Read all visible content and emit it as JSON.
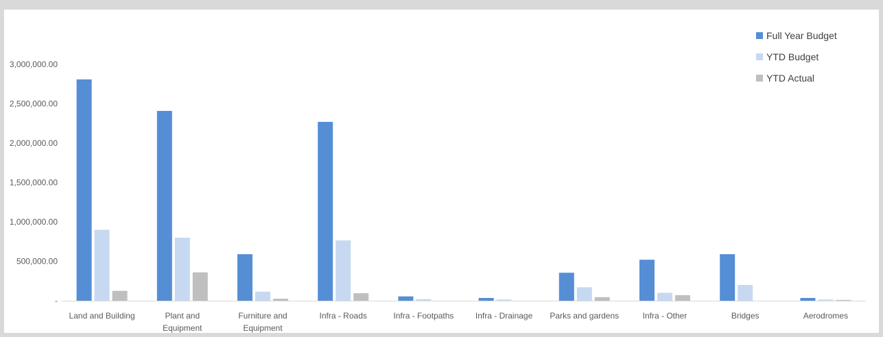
{
  "chart_data": {
    "type": "bar",
    "categories": [
      "Land and Building",
      "Plant and Equipment",
      "Furniture and Equipment",
      "Infra - Roads",
      "Infra - Footpaths",
      "Infra - Drainage",
      "Parks and gardens",
      "Infra - Other",
      "Bridges",
      "Aerodromes"
    ],
    "category_lines": [
      [
        "Land and Building"
      ],
      [
        "Plant and",
        "Equipment"
      ],
      [
        "Furniture and",
        "Equipment"
      ],
      [
        "Infra - Roads"
      ],
      [
        "Infra - Footpaths"
      ],
      [
        "Infra - Drainage"
      ],
      [
        "Parks and gardens"
      ],
      [
        "Infra - Other"
      ],
      [
        "Bridges"
      ],
      [
        "Aerodromes"
      ]
    ],
    "series": [
      {
        "name": "Full Year Budget",
        "color": "#558ED5",
        "values": [
          2810000,
          2410000,
          590000,
          2270000,
          55000,
          35000,
          355000,
          520000,
          590000,
          35000
        ]
      },
      {
        "name": "YTD Budget",
        "color": "#C6D9F1",
        "values": [
          900000,
          800000,
          115000,
          765000,
          20000,
          15000,
          170000,
          100000,
          200000,
          15000
        ]
      },
      {
        "name": "YTD Actual",
        "color": "#BFBFBF",
        "values": [
          125000,
          360000,
          25000,
          95000,
          0,
          0,
          45000,
          70000,
          0,
          10000
        ]
      }
    ],
    "yticks": [
      0,
      500000,
      1000000,
      1500000,
      2000000,
      2500000,
      3000000
    ],
    "ytick_labels": [
      "-",
      "500,000.00",
      "1,000,000.00",
      "1,500,000.00",
      "2,000,000.00",
      "2,500,000.00",
      "3,000,000.00"
    ],
    "ylim": [
      0,
      3000000
    ],
    "grid": false,
    "legend_position": "top-right"
  }
}
